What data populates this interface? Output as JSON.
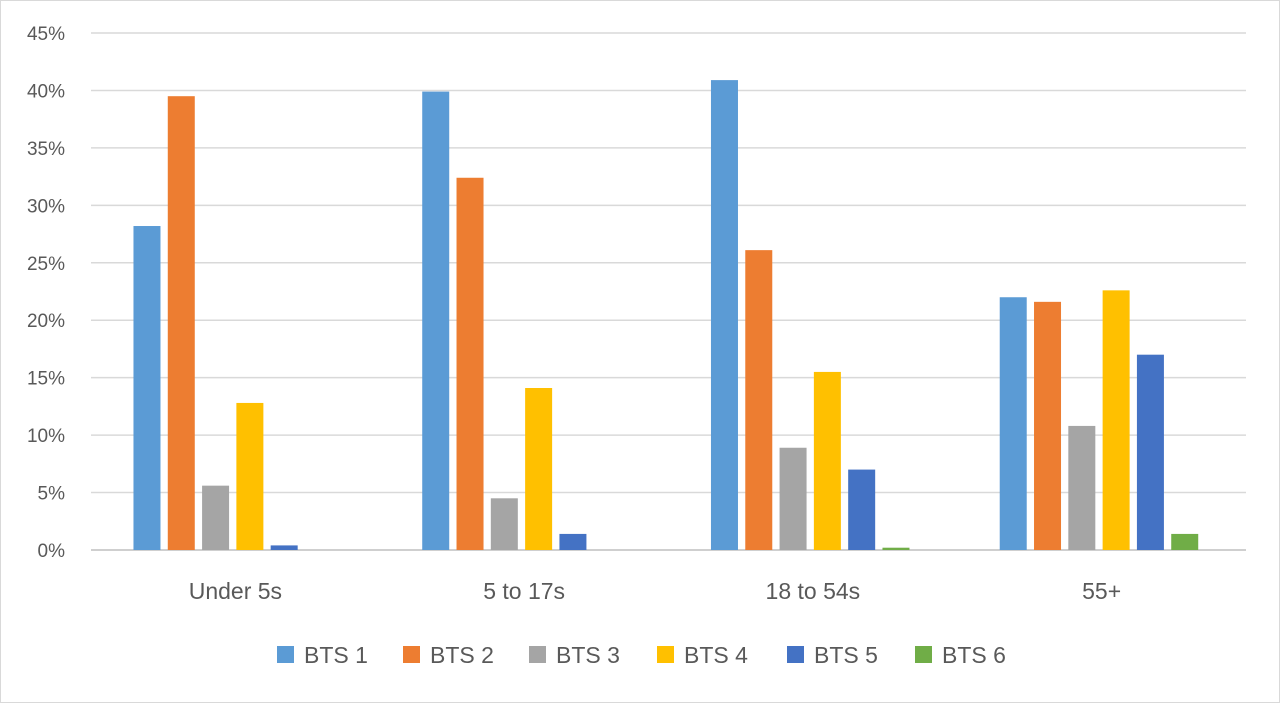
{
  "chart_data": {
    "type": "bar",
    "categories": [
      "Under 5s",
      "5 to 17s",
      "18 to 54s",
      "55+"
    ],
    "series": [
      {
        "name": "BTS 1",
        "color": "#5B9BD5",
        "values": [
          28.2,
          39.9,
          40.9,
          22.0
        ]
      },
      {
        "name": "BTS 2",
        "color": "#ED7D31",
        "values": [
          39.5,
          32.4,
          26.1,
          21.6
        ]
      },
      {
        "name": "BTS 3",
        "color": "#A5A5A5",
        "values": [
          5.6,
          4.5,
          8.9,
          10.8
        ]
      },
      {
        "name": "BTS 4",
        "color": "#FFC000",
        "values": [
          12.8,
          14.1,
          15.5,
          22.6
        ]
      },
      {
        "name": "BTS 5",
        "color": "#4472C4",
        "values": [
          0.4,
          1.4,
          7.0,
          17.0
        ]
      },
      {
        "name": "BTS 6",
        "color": "#70AD47",
        "values": [
          0.0,
          0.0,
          0.2,
          1.4
        ]
      }
    ],
    "yticks": [
      "0%",
      "5%",
      "10%",
      "15%",
      "20%",
      "25%",
      "30%",
      "35%",
      "40%",
      "45%"
    ],
    "ylim": [
      0,
      45
    ],
    "grid": true,
    "legend_position": "bottom"
  }
}
